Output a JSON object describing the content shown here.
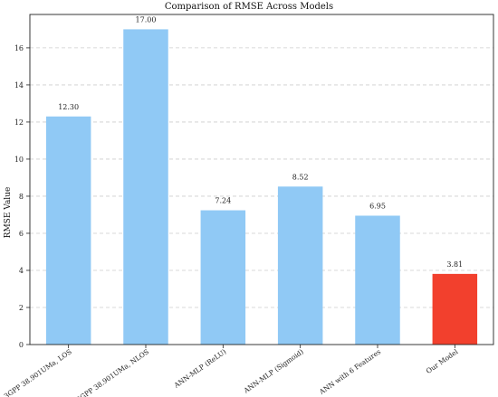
{
  "chart_data": {
    "type": "bar",
    "title": "Comparison of RMSE Across Models",
    "xlabel": "",
    "ylabel": "RMSE Value",
    "ylim": [
      0,
      17.8
    ],
    "yticks": [
      0,
      2,
      4,
      6,
      8,
      10,
      12,
      14,
      16
    ],
    "grid": "y-dashed",
    "categories": [
      "3GPP 38.901UMa, LOS",
      "3GPP 38.901UMa, NLOS",
      "ANN-MLP (ReLU)",
      "ANN-MLP (Sigmoid)",
      "ANN with 6 Features",
      "Our Model"
    ],
    "values": [
      12.3,
      17.0,
      7.24,
      8.52,
      6.95,
      3.81
    ],
    "value_labels": [
      "12.30",
      "17.00",
      "7.24",
      "8.52",
      "6.95",
      "3.81"
    ],
    "colors": [
      "#90c9f5",
      "#90c9f5",
      "#90c9f5",
      "#90c9f5",
      "#90c9f5",
      "#f2402d"
    ]
  }
}
